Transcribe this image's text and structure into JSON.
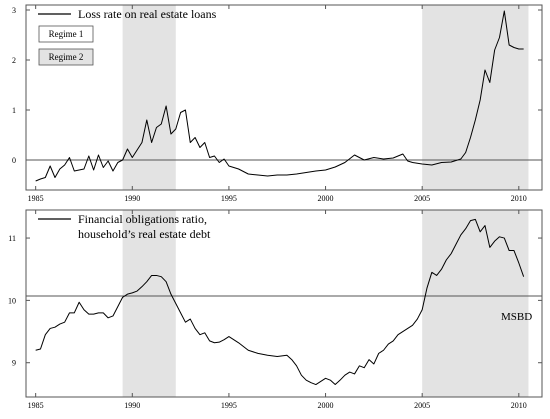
{
  "regime_legend": [
    {
      "label": "Regime 1",
      "fill": "#ffffff"
    },
    {
      "label": "Regime 2",
      "fill": "#e3e3e3"
    }
  ],
  "colors": {
    "shade": "#e3e3e3",
    "line": "#000000",
    "axis": "#555555"
  },
  "chart_data": [
    {
      "type": "line",
      "legend": [
        "Loss rate on real estate loans"
      ],
      "xlim": [
        1984.5,
        2011.2
      ],
      "ylim": [
        -0.6,
        3.1
      ],
      "x_ticks": [
        1985,
        1990,
        1995,
        2000,
        2005,
        2010
      ],
      "y_ticks": [
        0,
        1,
        2,
        3
      ],
      "hline": 0,
      "shaded": [
        [
          1989.5,
          1992.25
        ],
        [
          2005.0,
          2010.5
        ]
      ],
      "series": [
        {
          "x": [
            1985.0,
            1985.25,
            1985.5,
            1985.75,
            1986.0,
            1986.25,
            1986.5,
            1986.75,
            1987.0,
            1987.25,
            1987.5,
            1987.75,
            1988.0,
            1988.25,
            1988.5,
            1988.75,
            1989.0,
            1989.25,
            1989.5,
            1989.75,
            1990.0,
            1990.25,
            1990.5,
            1990.75,
            1991.0,
            1991.25,
            1991.5,
            1991.75,
            1992.0,
            1992.25,
            1992.5,
            1992.75,
            1993.0,
            1993.25,
            1993.5,
            1993.75,
            1994.0,
            1994.25,
            1994.5,
            1994.75,
            1995.0,
            1995.5,
            1996.0,
            1996.5,
            1997.0,
            1997.5,
            1998.0,
            1998.5,
            1999.0,
            1999.5,
            2000.0,
            2000.5,
            2001.0,
            2001.5,
            2002.0,
            2002.5,
            2003.0,
            2003.5,
            2004.0,
            2004.25,
            2004.5,
            2005.0,
            2005.5,
            2006.0,
            2006.5,
            2007.0,
            2007.25,
            2007.5,
            2007.75,
            2008.0,
            2008.25,
            2008.5,
            2008.75,
            2009.0,
            2009.25,
            2009.5,
            2009.75,
            2010.0,
            2010.25
          ],
          "y": [
            -0.42,
            -0.38,
            -0.35,
            -0.12,
            -0.35,
            -0.18,
            -0.1,
            0.05,
            -0.22,
            -0.2,
            -0.18,
            0.08,
            -0.2,
            0.1,
            -0.15,
            -0.02,
            -0.22,
            -0.05,
            0.0,
            0.22,
            0.05,
            0.2,
            0.35,
            0.8,
            0.35,
            0.65,
            0.72,
            1.08,
            0.52,
            0.62,
            0.95,
            1.0,
            0.35,
            0.45,
            0.25,
            0.35,
            0.05,
            0.08,
            -0.05,
            0.02,
            -0.12,
            -0.18,
            -0.28,
            -0.3,
            -0.32,
            -0.3,
            -0.3,
            -0.28,
            -0.25,
            -0.22,
            -0.2,
            -0.14,
            -0.05,
            0.1,
            0.0,
            0.05,
            0.02,
            0.04,
            0.12,
            -0.02,
            -0.05,
            -0.08,
            -0.1,
            -0.05,
            -0.04,
            0.02,
            0.15,
            0.45,
            0.8,
            1.2,
            1.8,
            1.55,
            2.2,
            2.45,
            2.98,
            2.3,
            2.25,
            2.22,
            2.22
          ]
        }
      ]
    },
    {
      "type": "line",
      "legend": [
        "Financial obligations ratio,",
        "household’s real estate debt"
      ],
      "xlim": [
        1984.5,
        2011.2
      ],
      "ylim": [
        8.45,
        11.45
      ],
      "x_ticks": [
        1985,
        1990,
        1995,
        2000,
        2005,
        2010
      ],
      "y_ticks": [
        9,
        10,
        11
      ],
      "hline": 10.07,
      "annotation": "MSBD",
      "shaded": [
        [
          1989.5,
          1992.25
        ],
        [
          2005.0,
          2010.5
        ]
      ],
      "series": [
        {
          "x": [
            1985.0,
            1985.25,
            1985.5,
            1985.75,
            1986.0,
            1986.25,
            1986.5,
            1986.75,
            1987.0,
            1987.25,
            1987.5,
            1987.75,
            1988.0,
            1988.25,
            1988.5,
            1988.75,
            1989.0,
            1989.25,
            1989.5,
            1989.75,
            1990.0,
            1990.25,
            1990.5,
            1990.75,
            1991.0,
            1991.25,
            1991.5,
            1991.75,
            1992.0,
            1992.25,
            1992.5,
            1992.75,
            1993.0,
            1993.25,
            1993.5,
            1993.75,
            1994.0,
            1994.25,
            1994.5,
            1994.75,
            1995.0,
            1995.5,
            1996.0,
            1996.5,
            1997.0,
            1997.5,
            1998.0,
            1998.25,
            1998.5,
            1998.75,
            1999.0,
            1999.25,
            1999.5,
            1999.75,
            2000.0,
            2000.25,
            2000.5,
            2000.75,
            2001.0,
            2001.25,
            2001.5,
            2001.75,
            2002.0,
            2002.25,
            2002.5,
            2002.75,
            2003.0,
            2003.25,
            2003.5,
            2003.75,
            2004.0,
            2004.25,
            2004.5,
            2004.75,
            2005.0,
            2005.25,
            2005.5,
            2005.75,
            2006.0,
            2006.25,
            2006.5,
            2006.75,
            2007.0,
            2007.25,
            2007.5,
            2007.75,
            2008.0,
            2008.25,
            2008.5,
            2008.75,
            2009.0,
            2009.25,
            2009.5,
            2009.75,
            2010.0,
            2010.25
          ],
          "y": [
            9.2,
            9.22,
            9.45,
            9.55,
            9.57,
            9.62,
            9.65,
            9.8,
            9.8,
            9.97,
            9.85,
            9.78,
            9.78,
            9.8,
            9.8,
            9.72,
            9.75,
            9.9,
            10.05,
            10.1,
            10.12,
            10.15,
            10.22,
            10.3,
            10.4,
            10.4,
            10.38,
            10.3,
            10.1,
            9.95,
            9.8,
            9.65,
            9.7,
            9.55,
            9.45,
            9.48,
            9.35,
            9.32,
            9.33,
            9.37,
            9.42,
            9.32,
            9.2,
            9.15,
            9.12,
            9.1,
            9.12,
            9.05,
            8.95,
            8.8,
            8.72,
            8.68,
            8.65,
            8.7,
            8.75,
            8.72,
            8.65,
            8.72,
            8.8,
            8.85,
            8.82,
            8.95,
            8.92,
            9.05,
            8.98,
            9.15,
            9.2,
            9.3,
            9.35,
            9.45,
            9.5,
            9.55,
            9.6,
            9.7,
            9.85,
            10.2,
            10.45,
            10.4,
            10.5,
            10.65,
            10.75,
            10.9,
            11.05,
            11.15,
            11.28,
            11.3,
            11.1,
            11.2,
            10.85,
            10.95,
            11.02,
            11.0,
            10.8,
            10.8,
            10.6,
            10.38
          ]
        }
      ]
    }
  ]
}
